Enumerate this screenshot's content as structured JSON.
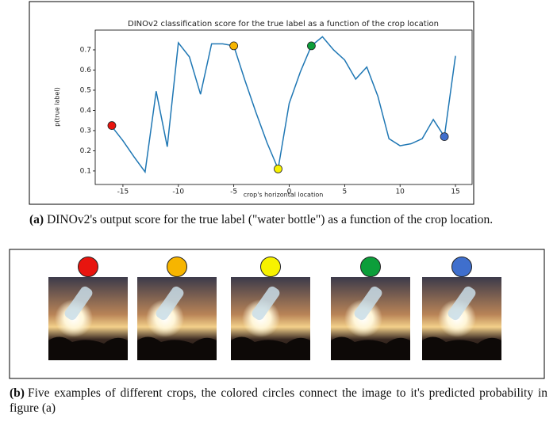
{
  "chart_data": {
    "type": "line",
    "title": "DINOv2 classification score for the true label as a function of the crop location",
    "x_label": "crop's horizontal location",
    "y_label": "p(true label)",
    "x": [
      -16,
      -15,
      -14,
      -13,
      -12,
      -11,
      -10,
      -9,
      -8,
      -7,
      -6,
      -5,
      -4,
      -3,
      -2,
      -1,
      0,
      1,
      2,
      3,
      4,
      5,
      6,
      7,
      8,
      9,
      10,
      11,
      12,
      13,
      14,
      15
    ],
    "series": [
      {
        "color": "#1f77b4",
        "values": [
          0.32,
          0.25,
          0.17,
          0.095,
          0.495,
          0.22,
          0.735,
          0.665,
          0.48,
          0.73,
          0.73,
          0.72,
          0.55,
          0.39,
          0.24,
          0.11,
          0.435,
          0.59,
          0.72,
          0.765,
          0.7,
          0.65,
          0.555,
          0.615,
          0.47,
          0.26,
          0.225,
          0.235,
          0.26,
          0.355,
          0.27,
          0.67
        ]
      }
    ],
    "highlights": [
      {
        "x": -16,
        "y": 0.325,
        "color": "#e8150f"
      },
      {
        "x": -5,
        "y": 0.72,
        "color": "#f7b500"
      },
      {
        "x": -1,
        "y": 0.11,
        "color": "#f7f200"
      },
      {
        "x": 2,
        "y": 0.72,
        "color": "#0c9e3a"
      },
      {
        "x": 14,
        "y": 0.27,
        "color": "#3f6fcd"
      }
    ],
    "xlim": [
      -17.5,
      16.5
    ],
    "ylim": [
      0.033,
      0.798
    ],
    "xticks": [
      -15,
      -10,
      -5,
      0,
      5,
      10,
      15
    ],
    "yticks": [
      0.1,
      0.2,
      0.3,
      0.4,
      0.5,
      0.6,
      0.7
    ]
  },
  "captions": {
    "a": {
      "label": "(a)",
      "text": "DINOv2's output score for the true label (\"water bottle\") as a function of the crop location."
    },
    "b": {
      "label": "(b)",
      "text": "Five examples of different crops, the colored circles connect the image to it's predicted probability in figure (a)"
    }
  }
}
